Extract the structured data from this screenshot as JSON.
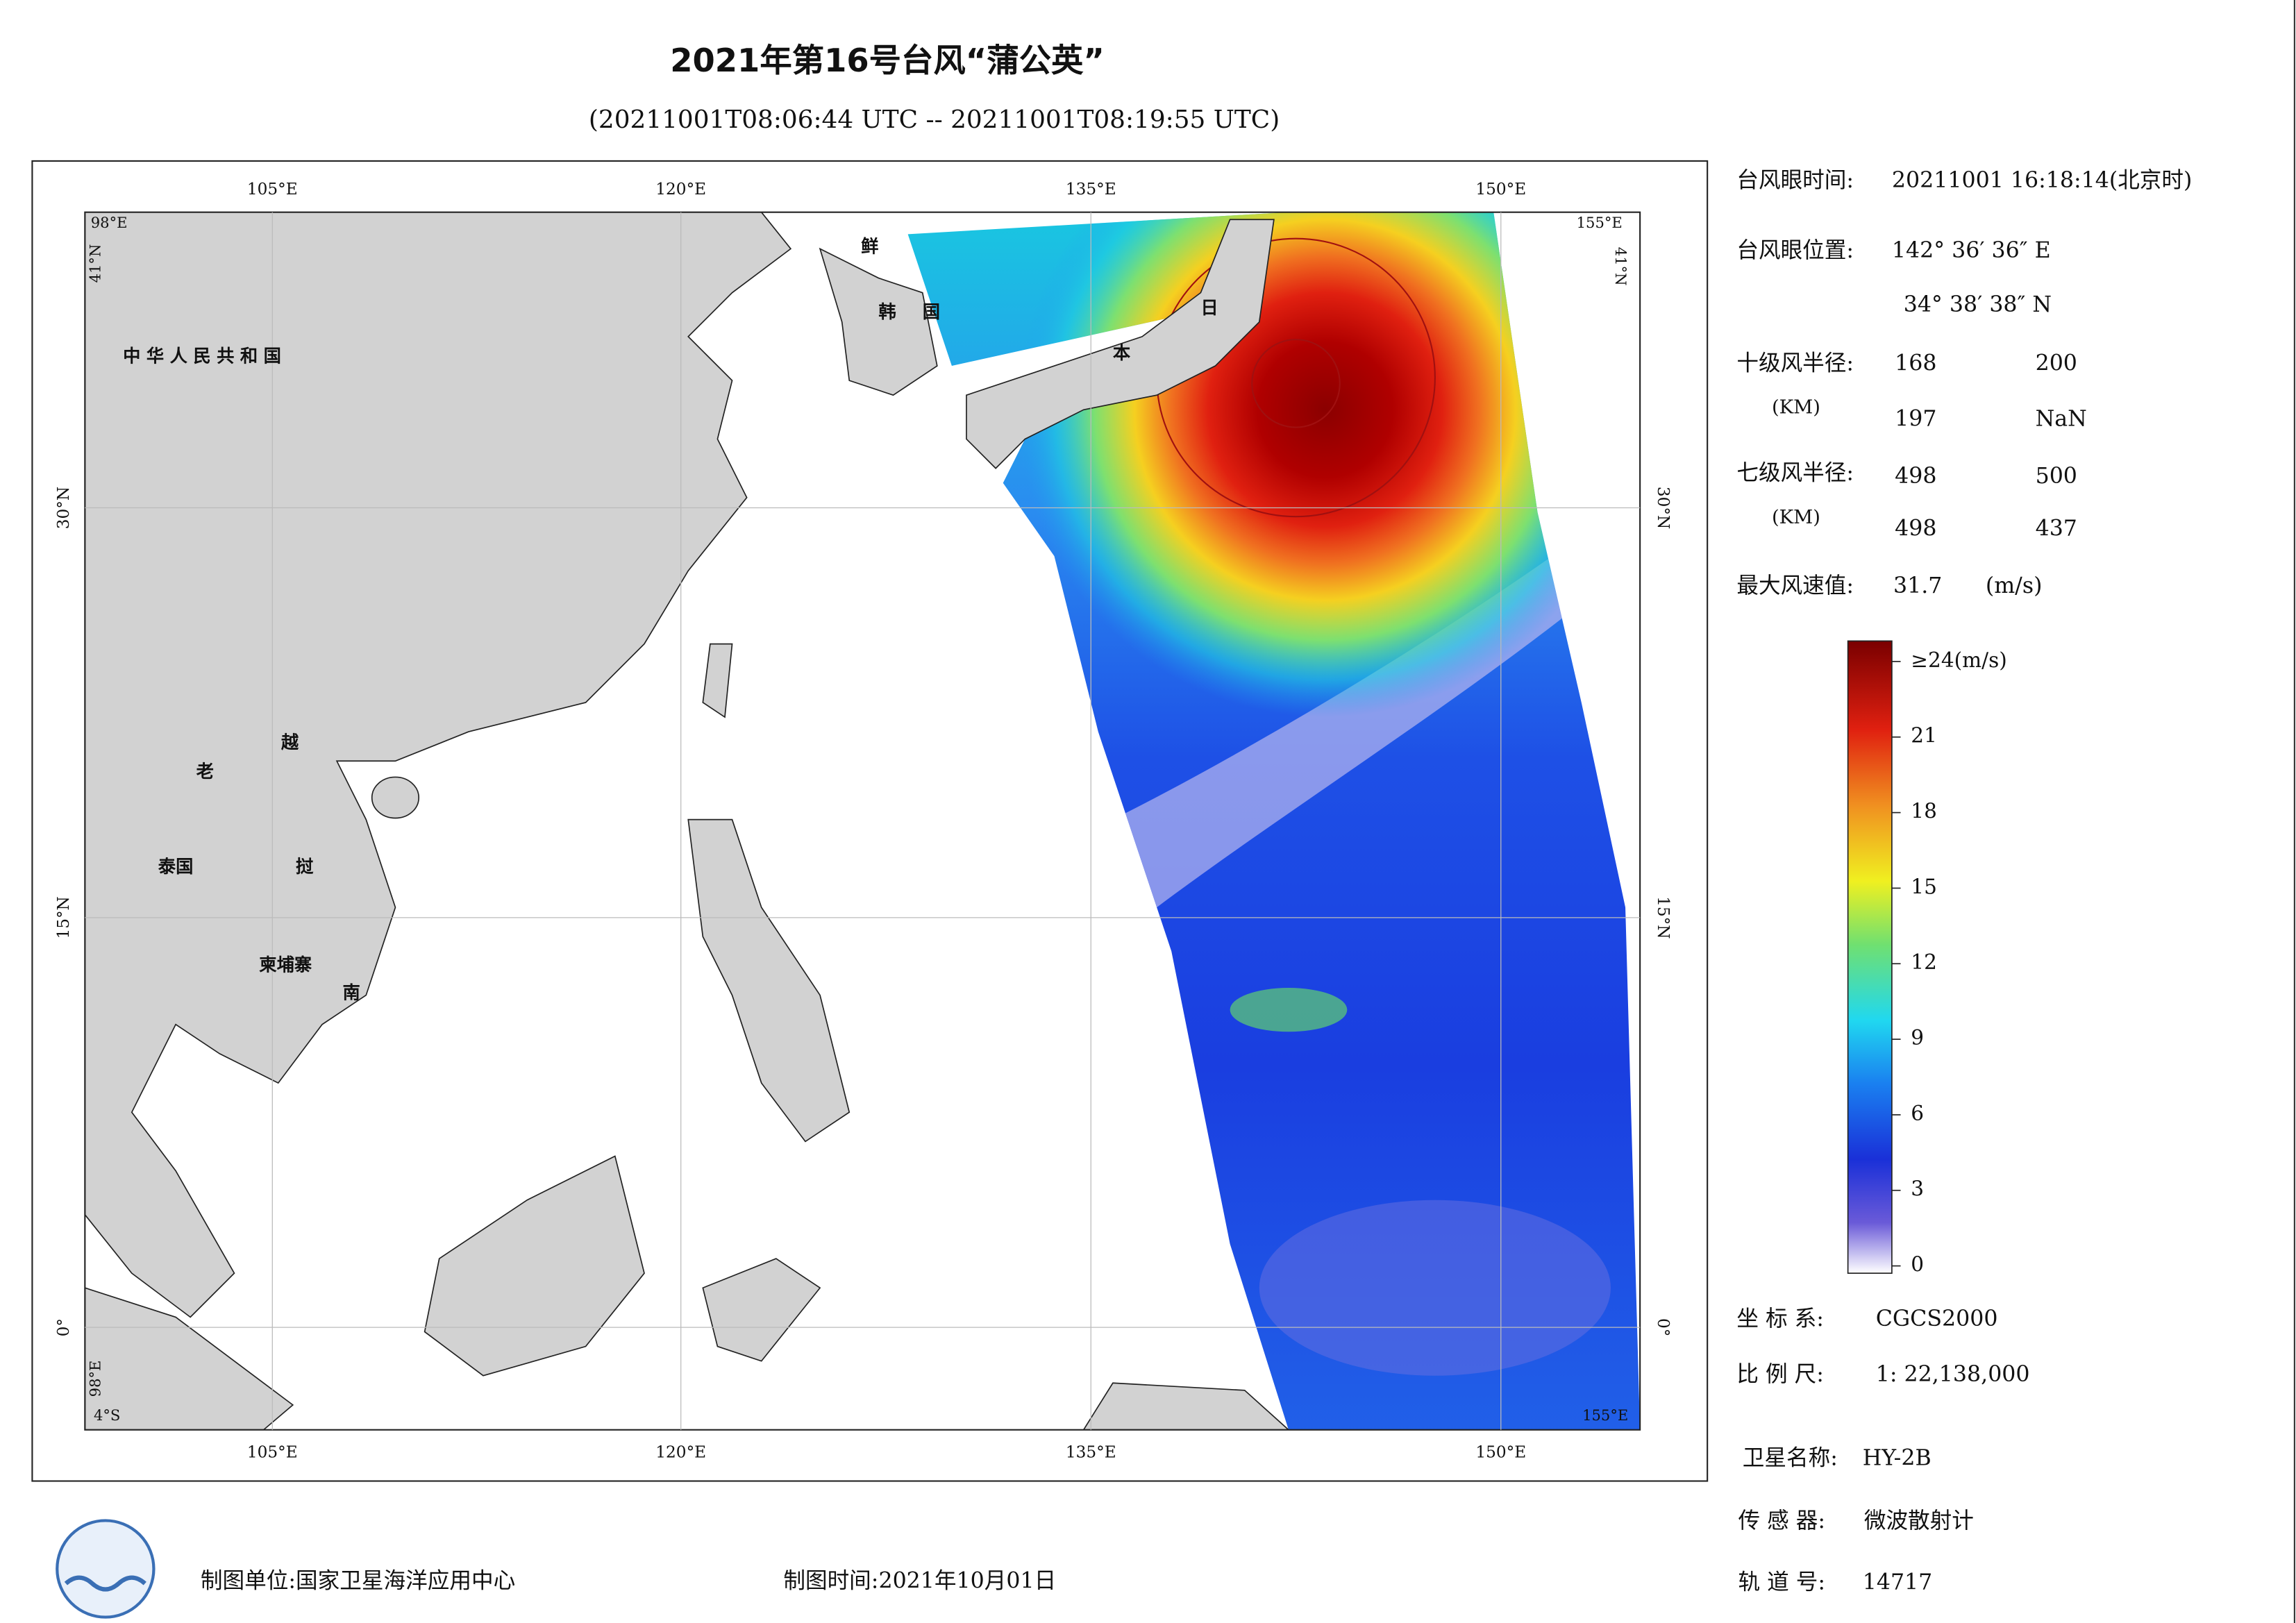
{
  "header": {
    "title": "2021年第16号台风“蒲公英”",
    "subtitle": "(20211001T08:06:44 UTC -- 20211001T08:19:55 UTC)"
  },
  "map": {
    "lon_ticks": [
      "105°E",
      "120°E",
      "135°E",
      "150°E"
    ],
    "lat_ticks": [
      "30°N",
      "15°N",
      "0°"
    ],
    "corner_labels": {
      "top_left_lon": "98°E",
      "top_left_lat": "41°N",
      "top_right_lon": "155°E",
      "top_right_lat": "41°N",
      "bottom_left_lat": "4°S",
      "bottom_left_lon": "98°E",
      "bottom_right_lon": "155°E"
    },
    "places": [
      "中华人民共和国",
      "鲜",
      "韩",
      "国",
      "日",
      "本",
      "老",
      "越",
      "泰国",
      "挝",
      "柬埔寨",
      "南"
    ]
  },
  "info": {
    "eye_time_label": "台风眼时间:",
    "eye_time": "20211001 16:18:14(北京时)",
    "eye_position_label": "台风眼位置:",
    "eye_lon": "142° 36′ 36″ E",
    "eye_lat": "34° 38′ 38″ N",
    "r10_label": "十级风半径:",
    "r10_unit": "(KM)",
    "r10_values": [
      168,
      200,
      197,
      "NaN"
    ],
    "r7_label": "七级风半径:",
    "r7_unit": "(KM)",
    "r7_values": [
      498,
      500,
      498,
      437
    ],
    "max_wind_label": "最大风速值:",
    "max_wind": 31.7,
    "max_wind_unit": "(m/s)"
  },
  "colorbar": {
    "range": [
      0,
      24
    ],
    "ticks": [
      0,
      3,
      6,
      9,
      12,
      15,
      18,
      21,
      {
        "value": 24,
        "label": "≥24(m/s)"
      }
    ]
  },
  "meta": {
    "crs_label": "坐 标 系:",
    "crs": "CGCS2000",
    "scale_label": "比 例 尺:",
    "scale": "1: 22,138,000",
    "satellite_label": "卫星名称:",
    "satellite": "HY-2B",
    "sensor_label": "传 感 器:",
    "sensor": "微波散射计",
    "orbit_label": "轨 道 号:",
    "orbit": 14717
  },
  "footer": {
    "producer": "制图单位:国家卫星海洋应用中心",
    "date": "制图时间:2021年10月01日"
  }
}
